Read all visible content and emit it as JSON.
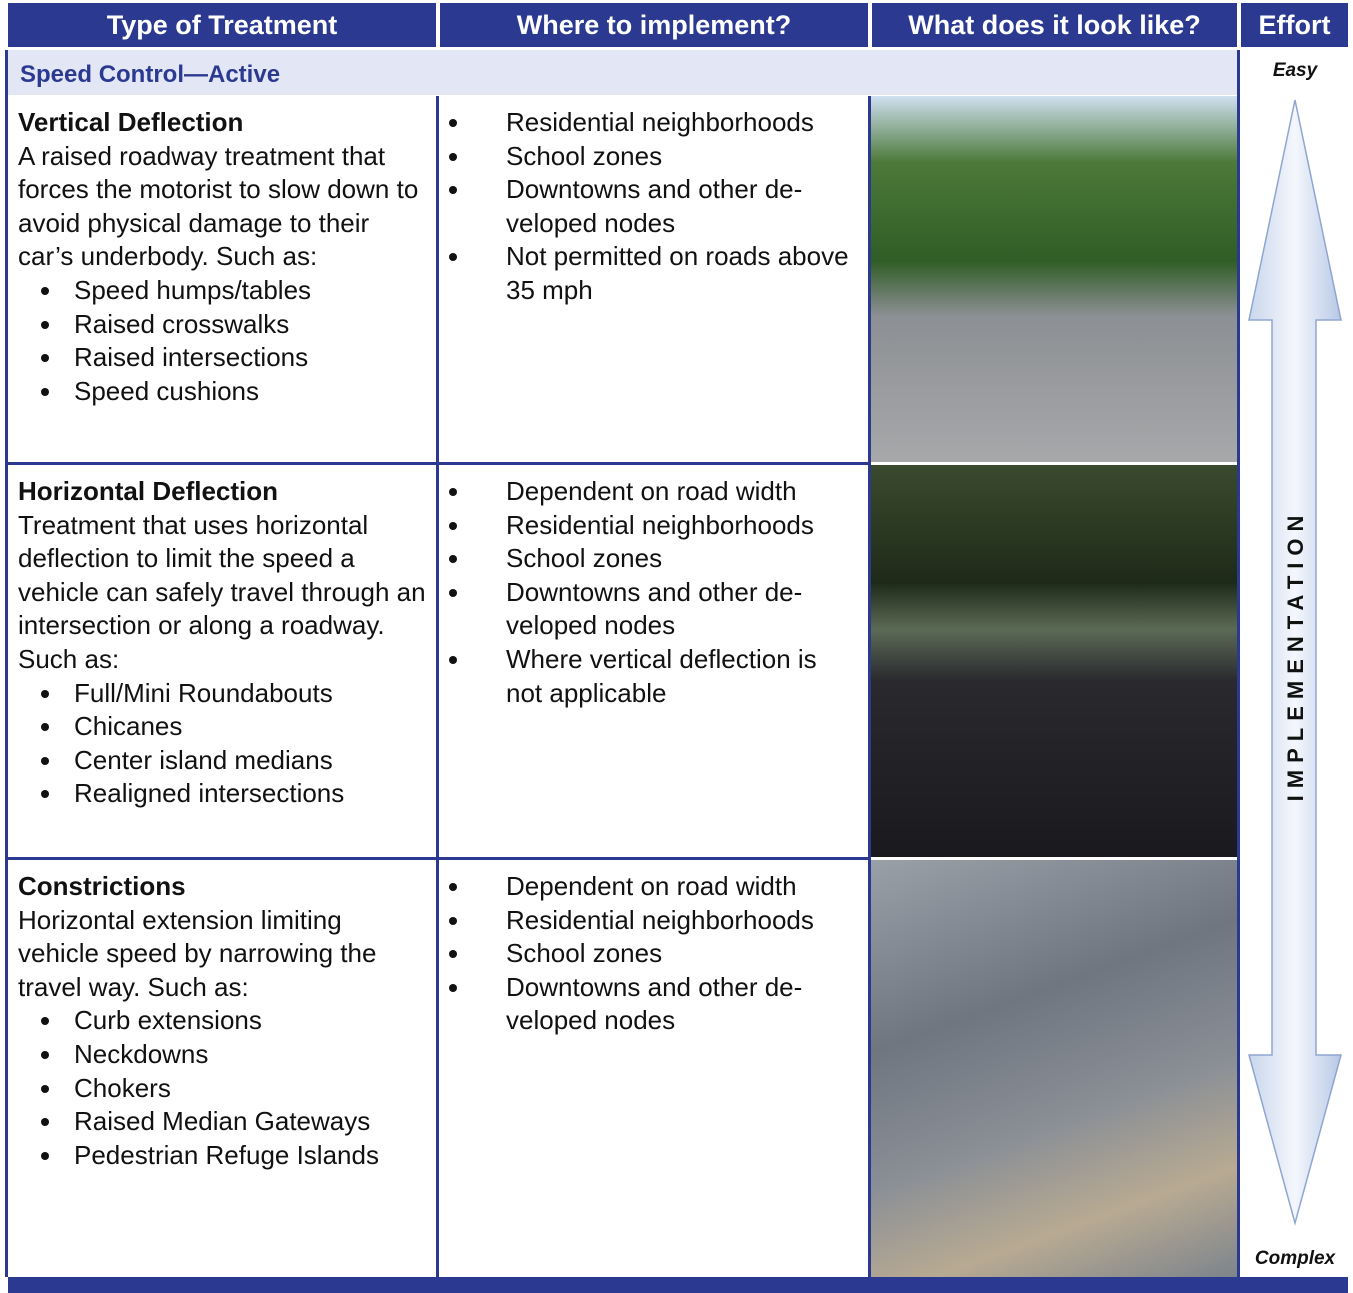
{
  "header": {
    "columns": [
      "Type of Treatment",
      "Where to implement?",
      "What does it look like?",
      "Effort"
    ]
  },
  "section": "Speed Control—Active",
  "effort": {
    "top": "Easy",
    "label": "IMPLEMENTATION",
    "bottom": "Complex"
  },
  "rows": [
    {
      "title": "Vertical Deflection",
      "description": "A raised roadway treatment that forces the motorist to slow down to avoid physical damage to their car’s underbody. Such as:",
      "examples": [
        "Speed humps/tables",
        "Raised crosswalks",
        "Raised intersections",
        "Speed cushions"
      ],
      "where": [
        "Residential neighborhoods",
        "School zones",
        "Downtowns and other de­veloped nodes",
        "Not permitted on roads above 35 mph"
      ]
    },
    {
      "title": "Horizontal Deflection",
      "description": "Treatment that uses horizontal deflection to limit the speed a vehicle can safely travel through an intersection or along a roadway. Such as:",
      "examples": [
        "Full/Mini Roundabouts",
        "Chicanes",
        "Center island medians",
        "Realigned intersections"
      ],
      "where": [
        "Dependent on road width",
        "Residential neighborhoods",
        "School zones",
        "Downtowns and other de­veloped nodes",
        "Where vertical deflection is not applicable"
      ]
    },
    {
      "title": "Constrictions",
      "description": "Horizontal extension limiting vehicle speed by narrowing the travel way. Such as:",
      "examples": [
        "Curb extensions",
        "Neckdowns",
        "Chokers",
        "Raised Median Gateways",
        "Pedestrian Refuge Islands"
      ],
      "where": [
        "Dependent on road width",
        "Residential neighborhoods",
        "School zones",
        "Downtowns and other de­veloped nodes"
      ]
    }
  ]
}
